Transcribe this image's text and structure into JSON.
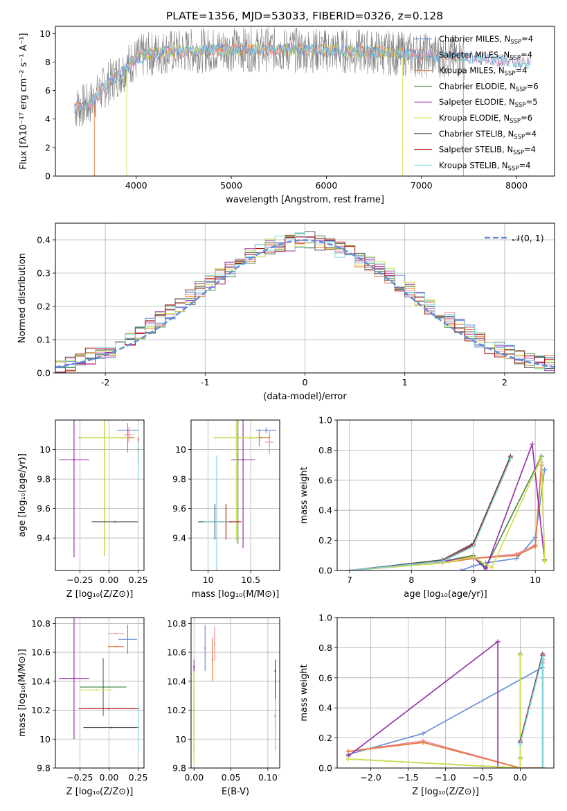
{
  "figure_title": "PLATE=1356, MJD=53033, FIBERID=0326, z=0.128",
  "colors": {
    "chabrier_miles": "#6a8fd8",
    "salpeter_miles": "#f08aa0",
    "kroupa_miles": "#e07a3a",
    "chabrier_elodie": "#4a8a4a",
    "salpeter_elodie": "#9b30b0",
    "kroupa_elodie": "#d4e04a",
    "chabrier_stelib": "#555555",
    "salpeter_stelib": "#b01818",
    "kroupa_stelib": "#80d8e0",
    "gaussian": "#5f8ed8",
    "grid": "#b0b0b0"
  },
  "chart_data": [
    {
      "type": "line",
      "id": "spectrum",
      "xlabel": "wavelength [Angstrom, rest frame]",
      "ylabel": "Flux [fλ10⁻¹⁷ erg cm⁻² s⁻¹ A⁻¹]",
      "xlim": [
        3150,
        8400
      ],
      "ylim": [
        0,
        10.5
      ],
      "xticks": [
        4000,
        5000,
        6000,
        7000,
        8000
      ],
      "yticks": [
        0,
        2,
        4,
        6,
        8,
        10
      ],
      "grid": false,
      "legend_position": "top-right",
      "legend": [
        "Chabrier MILES, N_SSP=4",
        "Salpeter MILES, N_SSP=4",
        "Kroupa MILES, N_SSP=4",
        "Chabrier ELODIE, N_SSP=6",
        "Salpeter ELODIE, N_SSP=5",
        "Kroupa ELODIE, N_SSP=6",
        "Chabrier STELIB, N_SSP=4",
        "Salpeter STELIB, N_SSP=4",
        "Kroupa STELIB, N_SSP=4"
      ],
      "continuum": {
        "x": [
          3350,
          3500,
          3700,
          3850,
          3950,
          4100,
          4300,
          4600,
          5000,
          5500,
          6000,
          6500,
          7000,
          7500,
          8000,
          8150
        ],
        "y": [
          4.8,
          5.0,
          6.5,
          7.3,
          8.0,
          8.5,
          8.7,
          8.8,
          8.9,
          8.85,
          8.8,
          8.7,
          8.5,
          8.3,
          8.0,
          7.9
        ]
      }
    },
    {
      "type": "line",
      "id": "residuals",
      "xlabel": "(data-model)/error",
      "ylabel": "Normed distribution",
      "xlim": [
        -2.5,
        2.5
      ],
      "ylim": [
        0,
        0.45
      ],
      "xticks": [
        -2,
        -1,
        0,
        1,
        2
      ],
      "yticks": [
        0.0,
        0.1,
        0.2,
        0.3,
        0.4
      ],
      "grid": true,
      "legend_position": "top-right",
      "legend": [
        "𝒩(0, 1)"
      ],
      "bin_centers": [
        -2.45,
        -2.35,
        -2.25,
        -2.15,
        -2.05,
        -1.95,
        -1.85,
        -1.75,
        -1.65,
        -1.55,
        -1.45,
        -1.35,
        -1.25,
        -1.15,
        -1.05,
        -0.95,
        -0.85,
        -0.75,
        -0.65,
        -0.55,
        -0.45,
        -0.35,
        -0.25,
        -0.15,
        -0.05,
        0.05,
        0.15,
        0.25,
        0.35,
        0.45,
        0.55,
        0.65,
        0.75,
        0.85,
        0.95,
        1.05,
        1.15,
        1.25,
        1.35,
        1.45,
        1.55,
        1.65,
        1.75,
        1.85,
        1.95,
        2.05,
        2.15,
        2.25,
        2.35,
        2.45
      ],
      "envelope": [
        0.018,
        0.028,
        0.038,
        0.05,
        0.06,
        0.07,
        0.08,
        0.1,
        0.12,
        0.14,
        0.16,
        0.18,
        0.2,
        0.23,
        0.25,
        0.27,
        0.29,
        0.31,
        0.33,
        0.35,
        0.37,
        0.38,
        0.39,
        0.39,
        0.4,
        0.4,
        0.39,
        0.38,
        0.37,
        0.36,
        0.34,
        0.33,
        0.31,
        0.29,
        0.27,
        0.25,
        0.22,
        0.2,
        0.18,
        0.16,
        0.14,
        0.12,
        0.1,
        0.08,
        0.07,
        0.06,
        0.05,
        0.04,
        0.035,
        0.03
      ]
    },
    {
      "type": "scatter",
      "id": "age_vs_Z",
      "xlabel": "Z [log₁₀(Z/Z⊙)]",
      "ylabel": "age  [log₁₀(age/yr)]",
      "xlim": [
        -0.46,
        0.3
      ],
      "ylim": [
        9.18,
        10.2
      ],
      "xticks": [
        -0.25,
        0.0,
        0.25
      ],
      "xtick_labels": [
        "−0.25",
        "0.00",
        "0.25"
      ],
      "yticks": [
        9.4,
        9.6,
        9.8,
        10.0
      ],
      "grid": true,
      "points": [
        {
          "series": "chabrier_miles",
          "x": 0.16,
          "y": 10.13,
          "xerr": 0.09,
          "yerr": 0.02
        },
        {
          "series": "salpeter_miles",
          "x": 0.17,
          "y": 10.1,
          "xerr": 0.04,
          "yerr": 0.05
        },
        {
          "series": "kroupa_miles",
          "x": 0.16,
          "y": 10.08,
          "xerr": 0.06,
          "yerr": 0.1
        },
        {
          "series": "chabrier_elodie",
          "x": -0.04,
          "y": 10.08,
          "xerr": 0.22,
          "yerr": 0.8
        },
        {
          "series": "salpeter_elodie",
          "x": -0.3,
          "y": 9.93,
          "xerr": 0.13,
          "yerr": 0.66
        },
        {
          "series": "kroupa_elodie",
          "x": -0.04,
          "y": 10.08,
          "xerr": 0.21,
          "yerr": 0.8
        },
        {
          "series": "chabrier_stelib",
          "x": 0.05,
          "y": 9.51,
          "xerr": 0.2,
          "yerr": 0.0
        },
        {
          "series": "salpeter_stelib",
          "x": 0.25,
          "y": 10.0,
          "xerr": 0.0,
          "yerr": 0.08
        },
        {
          "series": "kroupa_stelib",
          "x": 0.25,
          "y": 9.92,
          "xerr": 0.0,
          "yerr": 0.14
        }
      ]
    },
    {
      "type": "scatter",
      "id": "age_vs_mass",
      "xlabel": "mass [log₁₀(M/M⊙)]",
      "ylabel": "",
      "xlim": [
        9.8,
        10.84
      ],
      "ylim": [
        9.18,
        10.2
      ],
      "xticks": [
        10.0,
        10.5
      ],
      "yticks": [
        9.4,
        9.6,
        9.8,
        10.0
      ],
      "grid": true,
      "points": [
        {
          "series": "chabrier_miles",
          "x": 10.68,
          "y": 10.13,
          "xerr": 0.12,
          "yerr": 0.02
        },
        {
          "series": "salpeter_miles",
          "x": 10.72,
          "y": 10.05,
          "xerr": 0.05,
          "yerr": 0.08
        },
        {
          "series": "kroupa_miles",
          "x": 10.6,
          "y": 10.08,
          "xerr": 0.13,
          "yerr": 0.06
        },
        {
          "series": "chabrier_elodie",
          "x": 10.35,
          "y": 10.08,
          "xerr": 0.28,
          "yerr": 0.72
        },
        {
          "series": "salpeter_elodie",
          "x": 10.41,
          "y": 9.93,
          "xerr": 0.14,
          "yerr": 0.6
        },
        {
          "series": "kroupa_elodie",
          "x": 10.33,
          "y": 10.08,
          "xerr": 0.27,
          "yerr": 0.7
        },
        {
          "series": "chabrier_stelib",
          "x": 10.08,
          "y": 9.51,
          "xerr": 0.2,
          "yerr": 0.12
        },
        {
          "series": "salpeter_stelib",
          "x": 10.21,
          "y": 9.51,
          "xerr": 0.18,
          "yerr": 0.12
        },
        {
          "series": "kroupa_stelib",
          "x": 10.1,
          "y": 9.51,
          "xerr": 0.15,
          "yerr": 0.45
        }
      ]
    },
    {
      "type": "line",
      "id": "mass_weight_vs_age",
      "xlabel": "age  [log₁₀(age/yr)]",
      "ylabel": "mass weight",
      "xlim": [
        6.8,
        10.3
      ],
      "ylim": [
        0,
        1.0
      ],
      "xticks": [
        7,
        8,
        9,
        10
      ],
      "yticks": [
        0.0,
        0.2,
        0.4,
        0.6,
        0.8,
        1.0
      ],
      "grid": true,
      "series": [
        {
          "name": "Chabrier MILES",
          "x": [
            8.8,
            9.0,
            9.2,
            9.7,
            10.0,
            10.15
          ],
          "y": [
            0.0,
            0.03,
            0.05,
            0.08,
            0.22,
            0.67
          ]
        },
        {
          "name": "Salpeter MILES",
          "x": [
            7.0,
            8.5,
            9.0,
            9.7,
            10.0,
            10.1
          ],
          "y": [
            0.0,
            0.05,
            0.08,
            0.11,
            0.17,
            0.72
          ]
        },
        {
          "name": "Kroupa MILES",
          "x": [
            7.0,
            8.5,
            9.0,
            9.7,
            10.0,
            10.1
          ],
          "y": [
            0.0,
            0.05,
            0.08,
            0.1,
            0.16,
            0.7
          ]
        },
        {
          "name": "Chabrier ELODIE",
          "x": [
            7.0,
            8.5,
            9.0,
            9.2,
            10.1,
            10.15
          ],
          "y": [
            0.0,
            0.06,
            0.1,
            0.02,
            0.76,
            0.07
          ]
        },
        {
          "name": "Salpeter ELODIE",
          "x": [
            7.0,
            8.5,
            9.0,
            9.2,
            9.95,
            10.15
          ],
          "y": [
            0.0,
            0.06,
            0.09,
            0.01,
            0.84,
            0.07
          ]
        },
        {
          "name": "Kroupa ELODIE",
          "x": [
            7.0,
            8.5,
            9.0,
            9.3,
            10.1,
            10.15
          ],
          "y": [
            0.0,
            0.05,
            0.09,
            0.02,
            0.75,
            0.06
          ]
        },
        {
          "name": "Chabrier STELIB",
          "x": [
            7.0,
            8.5,
            9.0,
            9.6
          ],
          "y": [
            0.0,
            0.07,
            0.18,
            0.76
          ]
        },
        {
          "name": "Salpeter STELIB",
          "x": [
            7.0,
            8.5,
            9.0,
            9.6
          ],
          "y": [
            0.0,
            0.06,
            0.17,
            0.75
          ]
        },
        {
          "name": "Kroupa STELIB",
          "x": [
            7.0,
            8.5,
            9.0,
            9.6
          ],
          "y": [
            0.0,
            0.06,
            0.16,
            0.74
          ]
        }
      ]
    },
    {
      "type": "scatter",
      "id": "mass_vs_Z",
      "xlabel": "Z [log₁₀(Z/Z⊙)]",
      "ylabel": "mass [log₁₀(M/M⊙)]",
      "xlim": [
        -0.46,
        0.3
      ],
      "ylim": [
        9.8,
        10.84
      ],
      "xticks": [
        -0.25,
        0.0,
        0.25
      ],
      "xtick_labels": [
        "−0.25",
        "0.00",
        "0.25"
      ],
      "yticks": [
        9.8,
        10.0,
        10.2,
        10.4,
        10.6,
        10.8
      ],
      "grid": true,
      "points": [
        {
          "series": "chabrier_miles",
          "x": 0.16,
          "y": 10.69,
          "xerr": 0.08,
          "yerr": 0.1
        },
        {
          "series": "salpeter_miles",
          "x": 0.06,
          "y": 10.73,
          "xerr": 0.07,
          "yerr": 0.0
        },
        {
          "series": "kroupa_miles",
          "x": 0.06,
          "y": 10.64,
          "xerr": 0.07,
          "yerr": 0.0
        },
        {
          "series": "chabrier_elodie",
          "x": -0.05,
          "y": 10.36,
          "xerr": 0.2,
          "yerr": 0.2
        },
        {
          "series": "salpeter_elodie",
          "x": -0.3,
          "y": 10.42,
          "xerr": 0.13,
          "yerr": 0.42
        },
        {
          "series": "kroupa_elodie",
          "x": -0.11,
          "y": 10.34,
          "xerr": 0.14,
          "yerr": 0.0
        },
        {
          "series": "chabrier_stelib",
          "x": 0.02,
          "y": 10.08,
          "xerr": 0.24,
          "yerr": 0.0
        },
        {
          "series": "salpeter_stelib",
          "x": 0.0,
          "y": 10.21,
          "xerr": 0.26,
          "yerr": 0.0
        },
        {
          "series": "kroupa_stelib",
          "x": 0.25,
          "y": 10.08,
          "xerr": 0.0,
          "yerr": 0.17
        }
      ]
    },
    {
      "type": "scatter",
      "id": "mass_vs_ebv",
      "xlabel": "E(B-V)",
      "ylabel": "",
      "xlim": [
        -0.004,
        0.116
      ],
      "ylim": [
        9.8,
        10.84
      ],
      "xticks": [
        0.0,
        0.05,
        0.1
      ],
      "xtick_labels": [
        "0.00",
        "0.05",
        "0.10"
      ],
      "yticks": [
        9.8,
        10.0,
        10.2,
        10.4,
        10.6,
        10.8
      ],
      "grid": true,
      "points": [
        {
          "series": "chabrier_miles",
          "x": 0.015,
          "y": 10.63,
          "xerr": 0.0,
          "yerr": 0.16
        },
        {
          "series": "salpeter_miles",
          "x": 0.028,
          "y": 10.66,
          "xerr": 0.0,
          "yerr": 0.12
        },
        {
          "series": "kroupa_miles",
          "x": 0.025,
          "y": 10.55,
          "xerr": 0.0,
          "yerr": 0.15
        },
        {
          "series": "chabrier_elodie",
          "x": 0.0,
          "y": 10.2,
          "xerr": 0.0,
          "yerr": 0.3
        },
        {
          "series": "salpeter_elodie",
          "x": 0.0,
          "y": 10.5,
          "xerr": 0.0,
          "yerr": 0.05
        },
        {
          "series": "kroupa_elodie",
          "x": 0.0,
          "y": 10.15,
          "xerr": 0.0,
          "yerr": 0.32
        },
        {
          "series": "chabrier_stelib",
          "x": 0.11,
          "y": 10.16,
          "xerr": 0.0,
          "yerr": 0.24
        },
        {
          "series": "salpeter_stelib",
          "x": 0.11,
          "y": 10.47,
          "xerr": 0.0,
          "yerr": 0.08
        },
        {
          "series": "kroupa_stelib",
          "x": 0.11,
          "y": 10.1,
          "xerr": 0.0,
          "yerr": 0.18
        }
      ]
    },
    {
      "type": "line",
      "id": "mass_weight_vs_Z",
      "xlabel": "Z [log₁₀(Z/Z⊙)]",
      "ylabel": "mass weight",
      "xlim": [
        -2.45,
        0.45
      ],
      "ylim": [
        0,
        1.0
      ],
      "xticks": [
        -2.0,
        -1.5,
        -1.0,
        -0.5,
        0.0
      ],
      "xtick_labels": [
        "−2.0",
        "−1.5",
        "−1.0",
        "−0.5",
        "0.0"
      ],
      "yticks": [
        0.0,
        0.2,
        0.4,
        0.6,
        0.8,
        1.0
      ],
      "grid": true,
      "series": [
        {
          "name": "Chabrier MILES",
          "x": [
            -2.3,
            -1.3,
            0.3,
            0.3,
            0.3
          ],
          "y": [
            0.09,
            0.23,
            0.67,
            0.72,
            0.0
          ]
        },
        {
          "name": "Salpeter MILES",
          "x": [
            -2.3,
            -1.3,
            0.0,
            0.3,
            0.3
          ],
          "y": [
            0.11,
            0.18,
            0.0,
            0.0,
            0.72
          ]
        },
        {
          "name": "Kroupa MILES",
          "x": [
            -2.3,
            -1.3,
            0.0,
            0.3,
            0.3
          ],
          "y": [
            0.11,
            0.17,
            0.0,
            0.0,
            0.7
          ]
        },
        {
          "name": "Chabrier ELODIE",
          "x": [
            -2.3,
            0.0,
            0.0,
            0.0
          ],
          "y": [
            0.06,
            0.0,
            0.76,
            0.07
          ]
        },
        {
          "name": "Salpeter ELODIE",
          "x": [
            -2.3,
            -0.3,
            -0.3
          ],
          "y": [
            0.08,
            0.84,
            0.0
          ]
        },
        {
          "name": "Kroupa ELODIE",
          "x": [
            -2.3,
            0.0,
            0.0,
            0.0
          ],
          "y": [
            0.06,
            0.0,
            0.75,
            0.06
          ]
        },
        {
          "name": "Chabrier STELIB",
          "x": [
            0.0,
            0.3,
            0.3
          ],
          "y": [
            0.18,
            0.76,
            0.0
          ]
        },
        {
          "name": "Salpeter STELIB",
          "x": [
            0.0,
            0.3,
            0.3
          ],
          "y": [
            0.17,
            0.75,
            0.0
          ]
        },
        {
          "name": "Kroupa STELIB",
          "x": [
            0.0,
            0.3,
            0.3
          ],
          "y": [
            0.16,
            0.74,
            0.0
          ]
        }
      ]
    }
  ]
}
